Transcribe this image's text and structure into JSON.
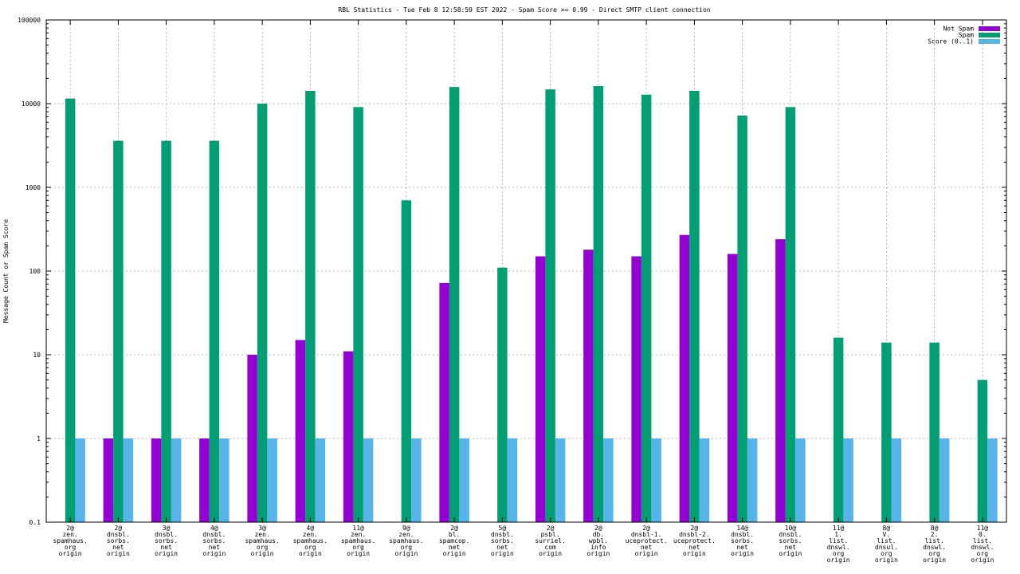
{
  "chart_data": {
    "type": "bar",
    "title": "RBL Statistics - Tue Feb  8 12:58:59 EST 2022 - Spam Score >= 0.99 - Direct SMTP client connection",
    "ylabel": "Message Count or Spam Score",
    "xlabel": "",
    "yscale": "log",
    "ylim": [
      0.1,
      100000
    ],
    "yticks": [
      "0.1",
      "1",
      "10",
      "100",
      "1000",
      "10000",
      "100000"
    ],
    "grid": true,
    "legend_position": "top-right",
    "categories": [
      [
        "2@",
        "zen.",
        "spamhaus.",
        "org",
        "origin"
      ],
      [
        "2@",
        "dnsbl.",
        "sorbs.",
        "net",
        "origin"
      ],
      [
        "3@",
        "dnsbl.",
        "sorbs.",
        "net",
        "origin"
      ],
      [
        "4@",
        "dnsbl.",
        "sorbs.",
        "net",
        "origin"
      ],
      [
        "3@",
        "zen.",
        "spamhaus.",
        "org",
        "origin"
      ],
      [
        "4@",
        "zen.",
        "spamhaus.",
        "org",
        "origin"
      ],
      [
        "11@",
        "zen.",
        "spamhaus.",
        "org",
        "origin"
      ],
      [
        "9@",
        "zen.",
        "spamhaus.",
        "org",
        "origin"
      ],
      [
        "2@",
        "bl.",
        "spamcop.",
        "net",
        "origin"
      ],
      [
        "5@",
        "dnsbl.",
        "sorbs.",
        "net",
        "origin"
      ],
      [
        "2@",
        "psbl.",
        "surriel.",
        "com",
        "origin"
      ],
      [
        "2@",
        "db.",
        "wpbl.",
        "info",
        "origin"
      ],
      [
        "2@",
        "dnsbl-1.",
        "uceprotect.",
        "net",
        "origin"
      ],
      [
        "2@",
        "dnsbl-2.",
        "uceprotect.",
        "net",
        "origin"
      ],
      [
        "14@",
        "dnsbl.",
        "sorbs.",
        "net",
        "origin"
      ],
      [
        "10@",
        "dnsbl.",
        "sorbs.",
        "net",
        "origin"
      ],
      [
        "11@",
        "1.",
        "list.",
        "dnswl.",
        "org",
        "origin"
      ],
      [
        "8@",
        "V.",
        "list.",
        "dnsul.",
        "org",
        "origin"
      ],
      [
        "8@",
        "2.",
        "list.",
        "dnswl.",
        "org",
        "origin"
      ],
      [
        "11@",
        "0.",
        "list.",
        "dnswl.",
        "org",
        "origin"
      ]
    ],
    "series": [
      {
        "name": "Not Spam",
        "color": "#9400d3",
        "values": [
          null,
          1,
          1,
          1,
          10,
          15,
          11,
          null,
          72,
          null,
          150,
          180,
          150,
          270,
          160,
          240,
          null,
          null,
          null,
          null
        ]
      },
      {
        "name": "Spam",
        "color": "#009e73",
        "values": [
          11500,
          3600,
          3600,
          3600,
          10000,
          14200,
          9100,
          700,
          15800,
          110,
          14800,
          16200,
          12800,
          14200,
          7200,
          9100,
          16,
          14,
          14,
          5
        ]
      },
      {
        "name": "Score (0..1)",
        "color": "#56b4e9",
        "values": [
          1,
          1,
          1,
          1,
          1,
          1,
          1,
          1,
          1,
          1,
          1,
          1,
          1,
          1,
          1,
          1,
          1,
          1,
          1,
          1
        ]
      }
    ]
  }
}
